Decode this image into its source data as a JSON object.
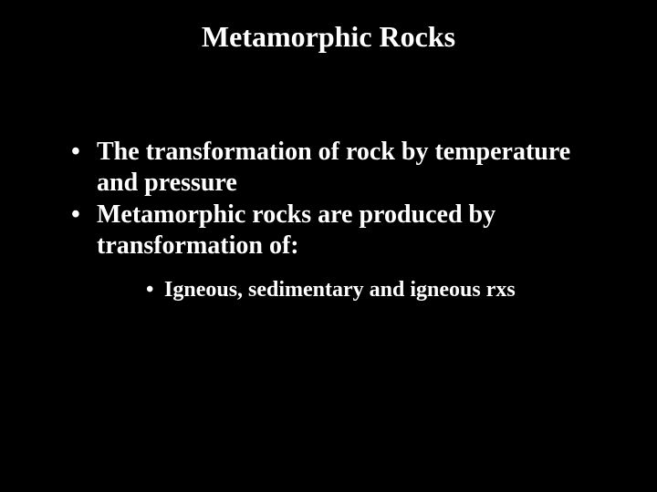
{
  "slide": {
    "background_color": "#000000",
    "text_color": "#ffffff",
    "font_family": "Times New Roman",
    "title": {
      "text": "Metamorphic Rocks",
      "fontsize": 32,
      "bold": true
    },
    "bullets": [
      {
        "level": 1,
        "marker": "•",
        "text": "The transformation of rock by temperature and pressure",
        "fontsize": 28,
        "bold": true
      },
      {
        "level": 1,
        "marker": "•",
        "text": "Metamorphic rocks are produced by transformation of:",
        "fontsize": 28,
        "bold": true
      },
      {
        "level": 2,
        "marker": "•",
        "text": "Igneous, sedimentary and igneous rxs",
        "fontsize": 24,
        "bold": true
      }
    ]
  }
}
